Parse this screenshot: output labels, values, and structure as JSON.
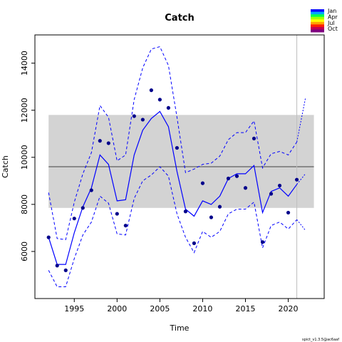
{
  "chart_data": {
    "type": "line",
    "title": "Catch",
    "xlabel": "Time",
    "ylabel": "Catch",
    "xlim": [
      1990.4,
      2024.2
    ],
    "ylim": [
      4000,
      15200
    ],
    "x_ticks": [
      1995,
      2000,
      2005,
      2010,
      2015,
      2020
    ],
    "y_ticks": [
      6000,
      8000,
      10000,
      12000,
      14000
    ],
    "grid": false,
    "legend_position": "top-right",
    "legend": {
      "labels": [
        "Jan",
        "Apr",
        "Jul",
        "Oct"
      ],
      "colors": [
        "#0000ff",
        "#00a8ff",
        "#00ff50",
        "#a0ff00",
        "#ffff00",
        "#ffa000",
        "#ff2000",
        "#c00050",
        "#800080"
      ]
    },
    "footnote": "spict_v1.3.5@ac6aaf",
    "colors": {
      "series": "#0000ff",
      "points": "#00008b",
      "band": "#d3d3d3",
      "vline": "#bfbfbf",
      "hline": "#404040"
    },
    "reference_band": {
      "lower": 7850,
      "upper": 11800,
      "x_start": 1992,
      "x_end": 2023
    },
    "reference_line": 9600,
    "vertical_line": 2021,
    "observed": {
      "x": [
        1992,
        1993,
        1994,
        1995,
        1996,
        1997,
        1998,
        1999,
        2000,
        2001,
        2002,
        2003,
        2004,
        2005,
        2006,
        2007,
        2008,
        2009,
        2010,
        2011,
        2012,
        2013,
        2014,
        2015,
        2016,
        2017,
        2018,
        2019,
        2020,
        2021
      ],
      "y": [
        6600,
        5400,
        5200,
        7400,
        7850,
        8600,
        10700,
        10600,
        7600,
        7100,
        11750,
        11600,
        12850,
        12450,
        12100,
        10400,
        7700,
        6350,
        8900,
        7450,
        7900,
        9100,
        9200,
        8700,
        10800,
        6400,
        8450,
        8800,
        7650,
        9050
      ]
    },
    "series": [
      {
        "x": [
          1992,
          1993,
          1994,
          1995,
          1996,
          1997,
          1998,
          1999,
          2000,
          2001,
          2002,
          2003,
          2004,
          2005,
          2006,
          2007,
          2008,
          2009,
          2010,
          2011,
          2012,
          2013,
          2014,
          2015,
          2016,
          2017,
          2018,
          2019,
          2020,
          2021
        ],
        "y": [
          6600,
          5450,
          5450,
          6800,
          7900,
          8700,
          10100,
          9700,
          8150,
          8200,
          10100,
          11150,
          11650,
          11950,
          11300,
          9400,
          7800,
          7500,
          8150,
          8000,
          8350,
          9100,
          9300,
          9300,
          9650,
          7650,
          8550,
          8700,
          8350,
          8850
        ]
      },
      {
        "x": [
          1992,
          1993,
          1994,
          1995,
          1996,
          1997,
          1998,
          1999,
          2000,
          2001,
          2002,
          2003,
          2004,
          2005,
          2006,
          2007,
          2008,
          2009,
          2010,
          2011,
          2012,
          2013,
          2014,
          2015,
          2016,
          2017,
          2018,
          2019,
          2020,
          2021
        ],
        "y": [
          8500,
          6550,
          6500,
          8100,
          9300,
          10200,
          12200,
          11700,
          9850,
          10100,
          12450,
          13800,
          14600,
          14700,
          13900,
          11700,
          9350,
          9500,
          9700,
          9750,
          10050,
          10750,
          11050,
          11050,
          11550,
          9550,
          10150,
          10250,
          10100,
          10650
        ]
      },
      {
        "x": [
          1992,
          1993,
          1994,
          1995,
          1996,
          1997,
          1998,
          1999,
          2000,
          2001,
          2002,
          2003,
          2004,
          2005,
          2006,
          2007,
          2008,
          2009,
          2010,
          2011,
          2012,
          2013,
          2014,
          2015,
          2016,
          2017,
          2018,
          2019,
          2020,
          2021
        ],
        "y": [
          5200,
          4500,
          4500,
          5700,
          6700,
          7250,
          8350,
          8050,
          6750,
          6700,
          8250,
          9000,
          9250,
          9600,
          9200,
          7600,
          6600,
          5950,
          6850,
          6600,
          6850,
          7600,
          7800,
          7800,
          8100,
          6150,
          7100,
          7250,
          6950,
          7350
        ]
      },
      {
        "x": [
          2021,
          2022
        ],
        "y": [
          8850,
          9300
        ]
      },
      {
        "x": [
          2021,
          2022
        ],
        "y": [
          10650,
          12500
        ]
      },
      {
        "x": [
          2021,
          2022
        ],
        "y": [
          7350,
          6900
        ]
      }
    ]
  }
}
